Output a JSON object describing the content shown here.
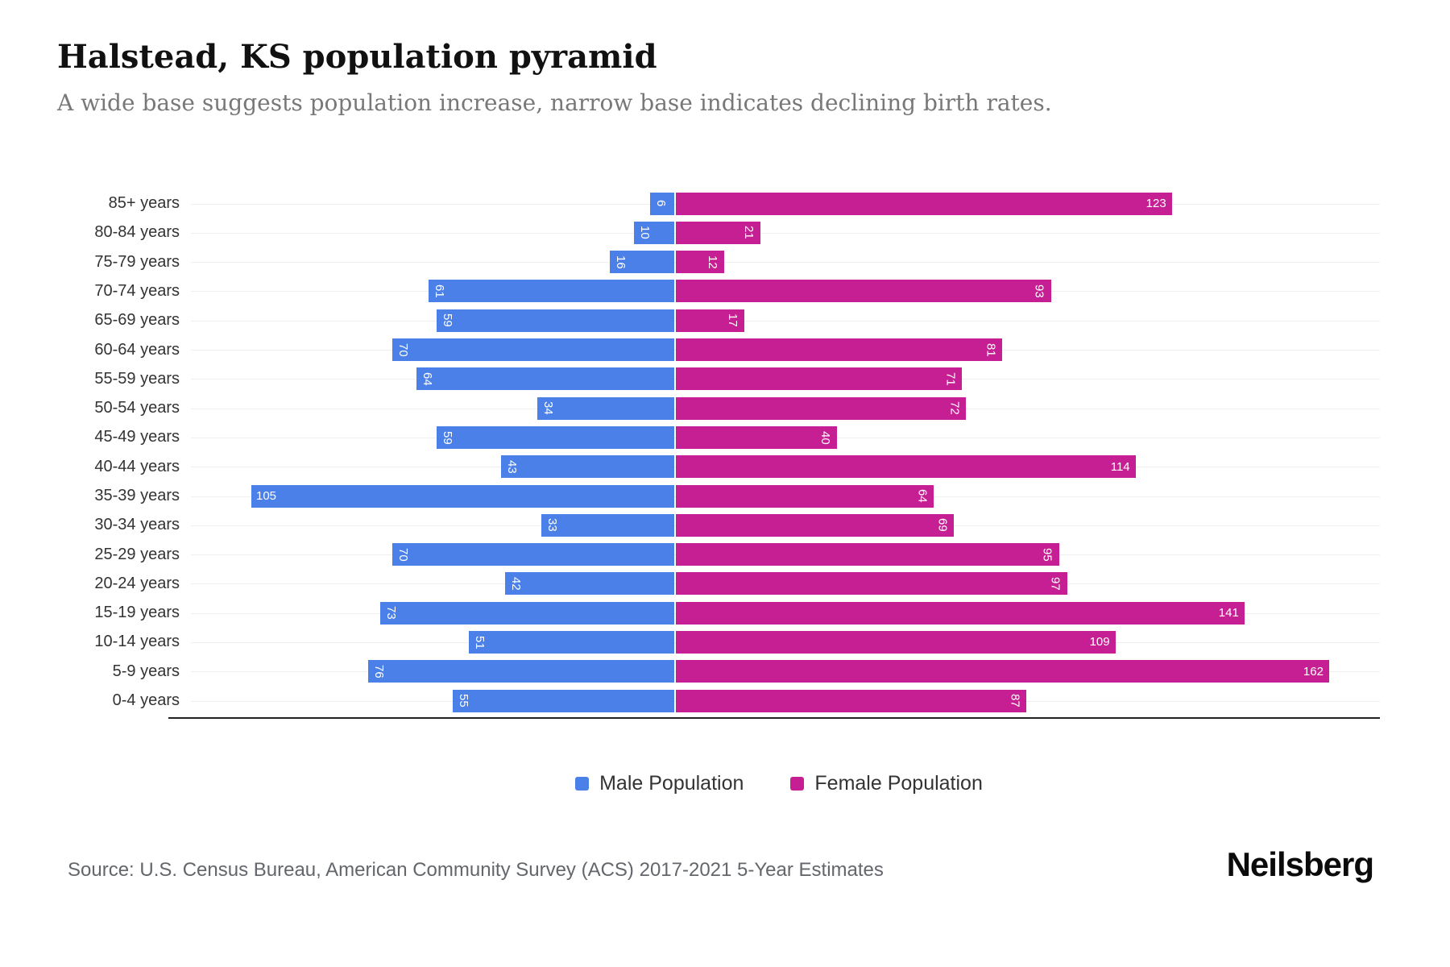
{
  "header": {
    "title": "Halstead, KS population pyramid",
    "subtitle": "A wide base suggests population increase, narrow base indicates declining birth rates."
  },
  "chart_data": {
    "type": "bar",
    "variant": "population-pyramid",
    "categories": [
      "85+ years",
      "80-84 years",
      "75-79 years",
      "70-74 years",
      "65-69 years",
      "60-64 years",
      "55-59 years",
      "50-54 years",
      "45-49 years",
      "40-44 years",
      "35-39 years",
      "30-34 years",
      "25-29 years",
      "20-24 years",
      "15-19 years",
      "10-14 years",
      "5-9 years",
      "0-4 years"
    ],
    "series": [
      {
        "name": "Male Population",
        "color": "#4A80E8",
        "side": "left",
        "values": [
          6,
          10,
          16,
          61,
          59,
          70,
          64,
          34,
          59,
          43,
          105,
          33,
          70,
          42,
          73,
          51,
          76,
          55
        ]
      },
      {
        "name": "Female Population",
        "color": "#C61F94",
        "side": "right",
        "values": [
          123,
          21,
          12,
          93,
          17,
          81,
          71,
          72,
          40,
          114,
          64,
          69,
          95,
          97,
          141,
          109,
          162,
          87
        ]
      }
    ],
    "axis": {
      "male_max": 120,
      "female_max": 175
    },
    "label_horizontal_min": 100,
    "grid": true,
    "gridline_color": "#efefef",
    "axis_line_color": "#222222",
    "legend_position": "bottom",
    "data_label_color": "#ffffff"
  },
  "footer": {
    "source": "Source: U.S. Census Bureau, American Community Survey (ACS) 2017-2021 5-Year Estimates",
    "brand": "Neilsberg"
  }
}
